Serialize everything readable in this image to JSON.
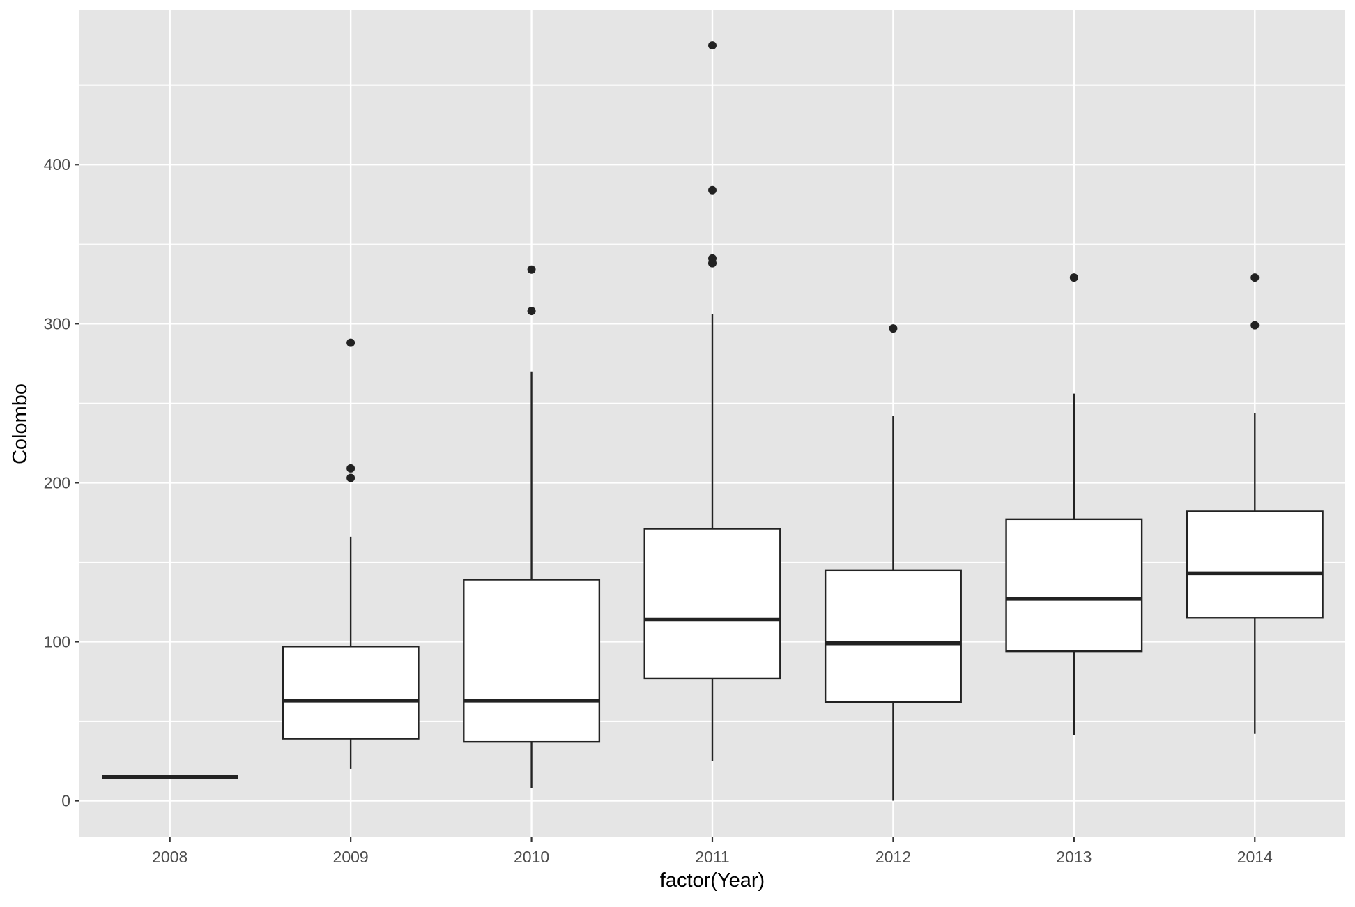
{
  "chart_data": {
    "type": "boxplot",
    "title": "",
    "xlabel": "factor(Year)",
    "ylabel": "Colombo",
    "ylim": [
      -23,
      497
    ],
    "y_ticks": [
      0,
      100,
      200,
      300,
      400
    ],
    "y_minor_ticks": [
      50,
      150,
      250,
      350,
      450
    ],
    "grid": true,
    "panel_background": "#e5e5e5",
    "grid_color": "#ffffff",
    "box_fill": "#ffffff",
    "line_color": "#222222",
    "categories": [
      "2008",
      "2009",
      "2010",
      "2011",
      "2012",
      "2013",
      "2014"
    ],
    "boxes": [
      {
        "category": "2008",
        "min": 15,
        "q1": 15,
        "median": 15,
        "q3": 15,
        "max": 15,
        "outliers": []
      },
      {
        "category": "2009",
        "min": 20,
        "q1": 39,
        "median": 63,
        "q3": 97,
        "max": 166,
        "outliers": [
          203,
          209,
          288
        ]
      },
      {
        "category": "2010",
        "min": 8,
        "q1": 37,
        "median": 63,
        "q3": 139,
        "max": 270,
        "outliers": [
          308,
          334
        ]
      },
      {
        "category": "2011",
        "min": 25,
        "q1": 77,
        "median": 114,
        "q3": 171,
        "max": 306,
        "outliers": [
          338,
          341,
          384,
          475
        ]
      },
      {
        "category": "2012",
        "min": 0,
        "q1": 62,
        "median": 99,
        "q3": 145,
        "max": 242,
        "outliers": [
          297
        ]
      },
      {
        "category": "2013",
        "min": 41,
        "q1": 94,
        "median": 127,
        "q3": 177,
        "max": 256,
        "outliers": [
          329
        ]
      },
      {
        "category": "2014",
        "min": 42,
        "q1": 115,
        "median": 143,
        "q3": 182,
        "max": 244,
        "outliers": [
          299,
          329
        ]
      }
    ]
  }
}
